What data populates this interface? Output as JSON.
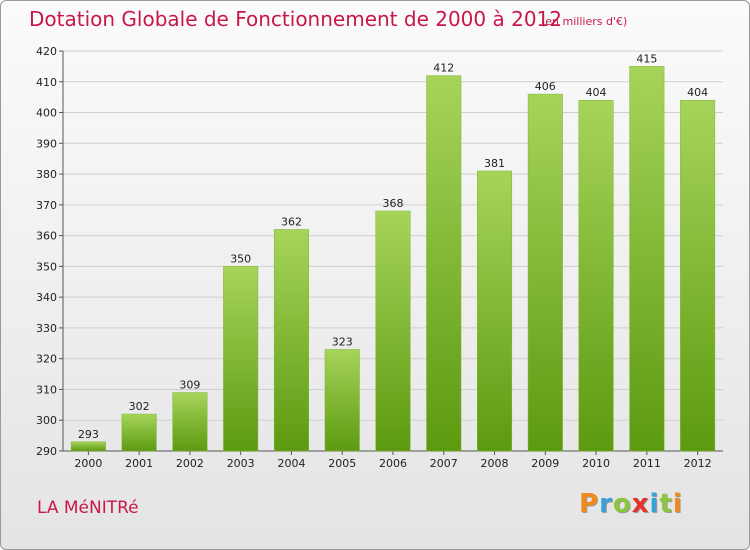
{
  "header": {
    "title": "Dotation Globale de Fonctionnement de 2000 à 2012",
    "unit": "(en milliers d'€)"
  },
  "commune": "LA MéNITRé",
  "logo": {
    "letters": [
      "P",
      "r",
      "o",
      "x",
      "i",
      "t",
      "i"
    ],
    "colors": [
      "#f08a1c",
      "#3aa0d8",
      "#8cc63f",
      "#e8302a",
      "#3aa0d8",
      "#8cc63f",
      "#f08a1c"
    ]
  },
  "colors": {
    "bar_top": "#a6d45a",
    "bar_bottom": "#5c9a10",
    "grid": "#cfcfcf",
    "text": "#222222",
    "accent": "#c8184a"
  },
  "chart_data": {
    "type": "bar",
    "title": "Dotation Globale de Fonctionnement de 2000 à 2012",
    "subtitle": "(en milliers d'€)",
    "xlabel": "",
    "ylabel": "",
    "categories": [
      "2000",
      "2001",
      "2002",
      "2003",
      "2004",
      "2005",
      "2006",
      "2007",
      "2008",
      "2009",
      "2010",
      "2011",
      "2012"
    ],
    "values": [
      293,
      302,
      309,
      350,
      362,
      323,
      368,
      412,
      381,
      406,
      404,
      415,
      404
    ],
    "ylim": [
      290,
      420
    ],
    "yticks": [
      290,
      300,
      310,
      320,
      330,
      340,
      350,
      360,
      370,
      380,
      390,
      400,
      410,
      420
    ],
    "grid": true,
    "legend": "none"
  }
}
